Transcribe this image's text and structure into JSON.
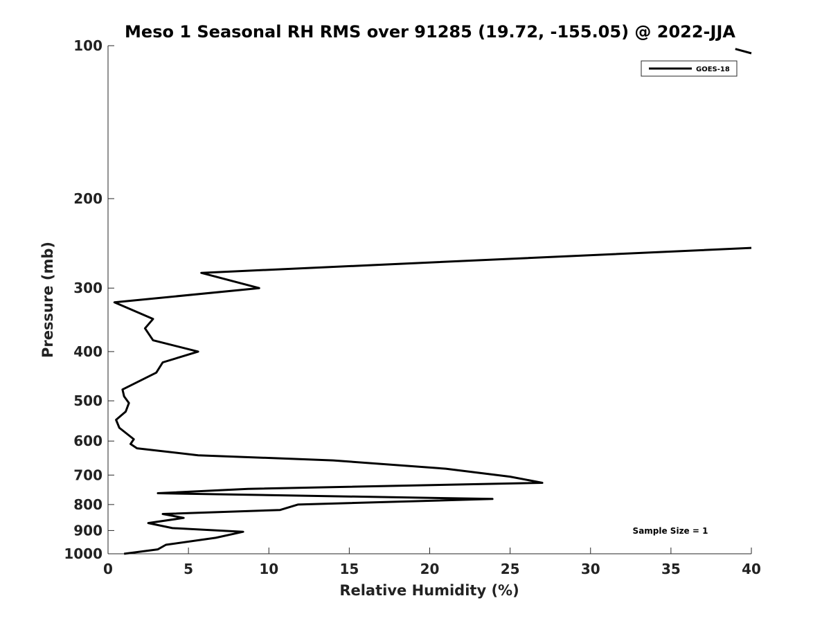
{
  "chart_data": {
    "type": "line",
    "title": "Meso 1 Seasonal RH RMS over 91285 (19.72, -155.05) @ 2022-JJA",
    "xlabel": "Relative Humidity (%)",
    "ylabel": "Pressure (mb)",
    "xlim": [
      0,
      40
    ],
    "ylim": [
      100,
      1000
    ],
    "yscale": "log",
    "y_reversed": true,
    "grid": false,
    "legend_position": "top-right",
    "x_ticks": [
      0,
      5,
      10,
      15,
      20,
      25,
      30,
      35,
      40
    ],
    "x_tick_labels": [
      "0",
      "5",
      "10",
      "15",
      "20",
      "25",
      "30",
      "35",
      "40"
    ],
    "y_ticks": [
      100,
      200,
      300,
      400,
      500,
      600,
      700,
      800,
      900,
      1000
    ],
    "y_tick_labels": [
      "100",
      "200",
      "300",
      "400",
      "500",
      "600",
      "700",
      "800",
      "900",
      "1000"
    ],
    "annotation": "Sample Size = 1",
    "series": [
      {
        "name": "GOES-18",
        "color": "#000000",
        "segments": [
          {
            "x": [
              1.0,
              3.1,
              3.6,
              6.7,
              8.4,
              4.0,
              2.5,
              4.7,
              3.4,
              10.7,
              11.8,
              23.9,
              3.1,
              8.7,
              27.0,
              25.0,
              21.0,
              14.0,
              5.6,
              1.8,
              1.4,
              1.6,
              0.7,
              0.5,
              1.1,
              1.3,
              1.0,
              0.9,
              3.0,
              3.4,
              5.6,
              2.8,
              2.3,
              2.8,
              0.4,
              9.4,
              5.8,
              40.0
            ],
            "y": [
              1000,
              980,
              960,
              930,
              905,
              890,
              870,
              850,
              835,
              820,
              800,
              780,
              760,
              745,
              725,
              705,
              680,
              655,
              640,
              620,
              608,
              595,
              565,
              545,
              525,
              505,
              490,
              475,
              440,
              420,
              400,
              380,
              360,
              345,
              320,
              300,
              280,
              250
            ]
          },
          {
            "x": [
              39.0,
              40.0
            ],
            "y": [
              101.5,
              103.5
            ]
          }
        ]
      }
    ]
  }
}
